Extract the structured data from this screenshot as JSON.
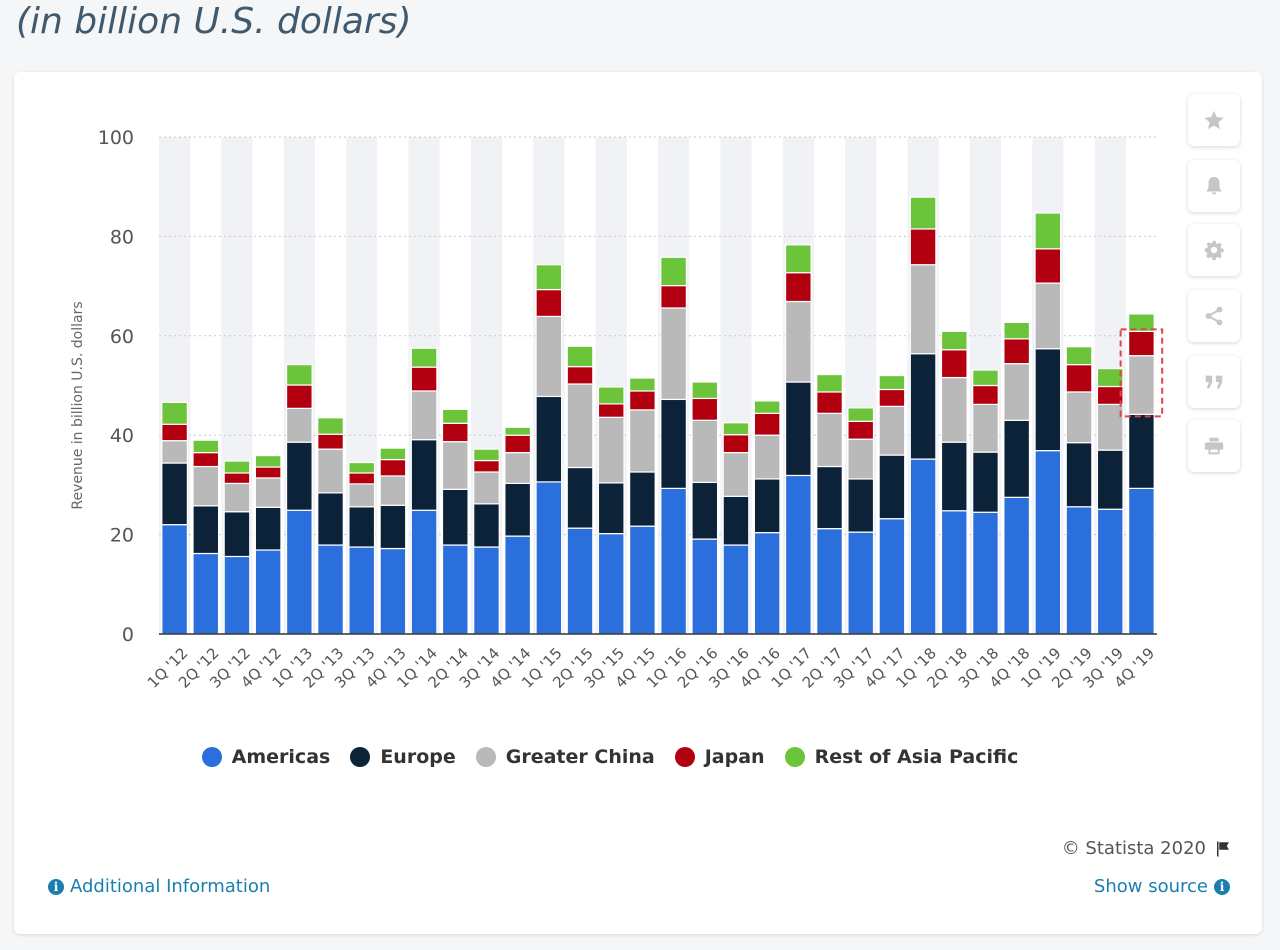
{
  "page": {
    "subtitle": "(in billion U.S. dollars)"
  },
  "toolbar": {
    "buttons": [
      "star-icon",
      "bell-icon",
      "gear-icon",
      "share-icon",
      "quote-icon",
      "print-icon"
    ]
  },
  "footer": {
    "credit": "© Statista 2020",
    "additional_info": "Additional Information",
    "show_source": "Show source"
  },
  "chart_data": {
    "type": "bar",
    "stacked": true,
    "ylabel": "Revenue in billion U.S. dollars",
    "xlabel": "",
    "ylim": [
      0,
      100
    ],
    "yticks": [
      0,
      20,
      40,
      60,
      80,
      100
    ],
    "grid": true,
    "legend_position": "bottom",
    "categories": [
      "1Q '12",
      "2Q '12",
      "3Q '12",
      "4Q '12",
      "1Q '13",
      "2Q '13",
      "3Q '13",
      "4Q '13",
      "1Q '14",
      "2Q '14",
      "3Q '14",
      "4Q '14",
      "1Q '15",
      "2Q '15",
      "3Q '15",
      "4Q '15",
      "1Q '16",
      "2Q '16",
      "3Q '16",
      "4Q '16",
      "1Q '17",
      "2Q '17",
      "3Q '17",
      "4Q '17",
      "1Q '18",
      "2Q '18",
      "3Q '18",
      "4Q '18",
      "1Q '19",
      "2Q '19",
      "3Q '19",
      "4Q '19"
    ],
    "series": [
      {
        "name": "Americas",
        "color": "#2a6fdb",
        "values": [
          22.0,
          16.2,
          15.6,
          16.9,
          24.9,
          17.9,
          17.5,
          17.2,
          24.9,
          17.9,
          17.5,
          19.7,
          30.6,
          21.3,
          20.2,
          21.7,
          29.3,
          19.1,
          17.9,
          20.4,
          31.9,
          21.2,
          20.5,
          23.2,
          35.2,
          24.8,
          24.5,
          27.5,
          36.9,
          25.6,
          25.1,
          29.3
        ]
      },
      {
        "name": "Europe",
        "color": "#0b2238",
        "values": [
          12.4,
          9.6,
          9.0,
          8.6,
          13.7,
          10.5,
          8.1,
          8.7,
          14.2,
          11.2,
          8.7,
          10.6,
          17.2,
          12.2,
          10.2,
          10.9,
          17.9,
          11.4,
          9.8,
          10.8,
          18.8,
          12.5,
          10.7,
          12.8,
          21.2,
          13.8,
          12.1,
          15.5,
          20.5,
          12.9,
          11.9,
          14.9
        ]
      },
      {
        "name": "Greater China",
        "color": "#b9b9b9",
        "values": [
          4.5,
          7.9,
          5.7,
          5.9,
          6.8,
          8.8,
          4.6,
          5.9,
          9.8,
          9.6,
          6.4,
          6.2,
          16.1,
          16.8,
          13.2,
          12.5,
          18.4,
          12.5,
          8.8,
          8.8,
          16.2,
          10.7,
          8.0,
          9.8,
          17.9,
          13.0,
          9.6,
          11.4,
          13.2,
          10.2,
          9.2,
          11.8
        ]
      },
      {
        "name": "Japan",
        "color": "#b30010",
        "values": [
          3.3,
          2.8,
          2.1,
          2.2,
          4.7,
          3.0,
          2.2,
          3.3,
          4.8,
          3.7,
          2.3,
          3.5,
          5.4,
          3.5,
          2.7,
          3.8,
          4.5,
          4.4,
          3.6,
          4.4,
          5.8,
          4.3,
          3.6,
          3.4,
          7.2,
          5.6,
          3.8,
          5.0,
          6.9,
          5.5,
          3.6,
          4.9
        ]
      },
      {
        "name": "Rest of Asia Pacific",
        "color": "#6cc43a",
        "values": [
          4.4,
          2.5,
          2.4,
          2.3,
          4.1,
          3.3,
          2.1,
          2.3,
          3.8,
          2.8,
          2.3,
          1.6,
          5.0,
          4.1,
          3.4,
          2.6,
          5.7,
          3.3,
          2.4,
          2.5,
          5.6,
          3.5,
          2.7,
          2.8,
          6.4,
          3.7,
          3.1,
          3.3,
          7.2,
          3.6,
          3.6,
          3.5
        ]
      }
    ]
  }
}
